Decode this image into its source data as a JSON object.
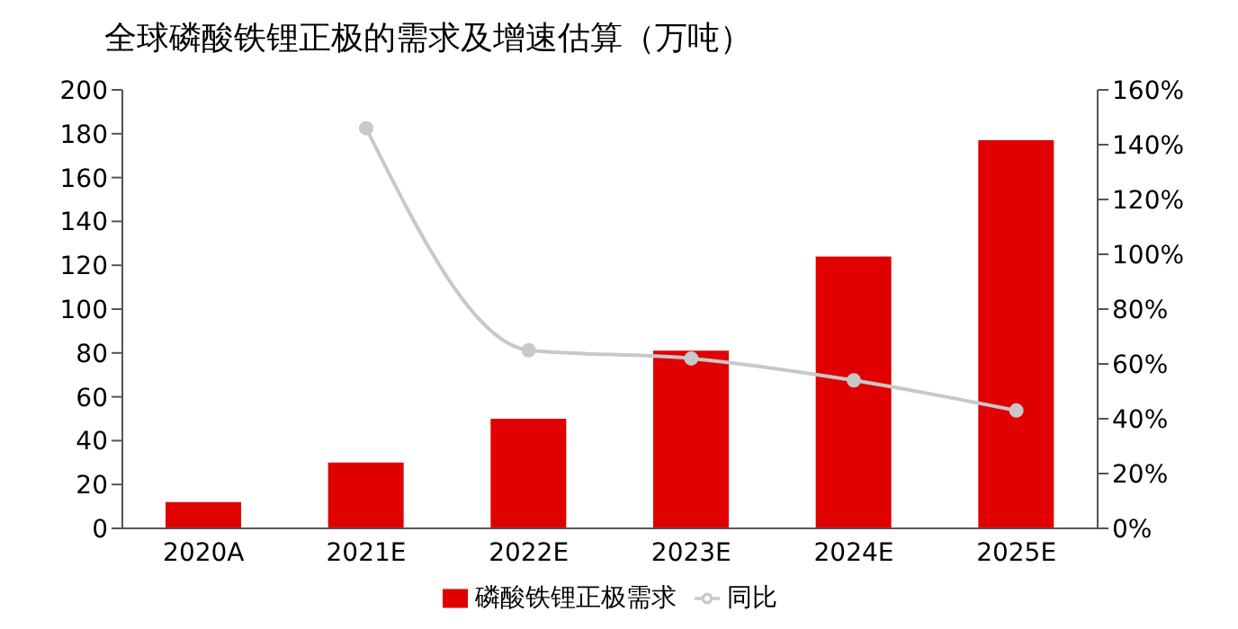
{
  "chart_data": {
    "type": "bar",
    "title": "全球磷酸铁锂正极的需求及增速估算（万吨）",
    "categories": [
      "2020A",
      "2021E",
      "2022E",
      "2023E",
      "2024E",
      "2025E"
    ],
    "series": [
      {
        "name": "磷酸铁锂正极需求",
        "color": "#e00000",
        "values": [
          12,
          30,
          50,
          81,
          124,
          177
        ]
      },
      {
        "name": "同比",
        "type": "line",
        "axis": "y2",
        "color": "#c8c8c8",
        "values": [
          null,
          146,
          65,
          62,
          54,
          43
        ]
      }
    ],
    "ylim": [
      0,
      200
    ],
    "yticks": [
      0,
      20,
      40,
      60,
      80,
      100,
      120,
      140,
      160,
      180,
      200
    ],
    "y2lim": [
      0,
      160
    ],
    "y2ticks": [
      {
        "value": 0,
        "label": "0%"
      },
      {
        "value": 20,
        "label": "20%"
      },
      {
        "value": 40,
        "label": "40%"
      },
      {
        "value": 60,
        "label": "60%"
      },
      {
        "value": 80,
        "label": "80%"
      },
      {
        "value": 100,
        "label": "100%"
      },
      {
        "value": 120,
        "label": "120%"
      },
      {
        "value": 140,
        "label": "140%"
      },
      {
        "value": 160,
        "label": "160%"
      }
    ],
    "legend": "bottom",
    "marker": "circle",
    "line_style": "solid",
    "grid": false
  }
}
